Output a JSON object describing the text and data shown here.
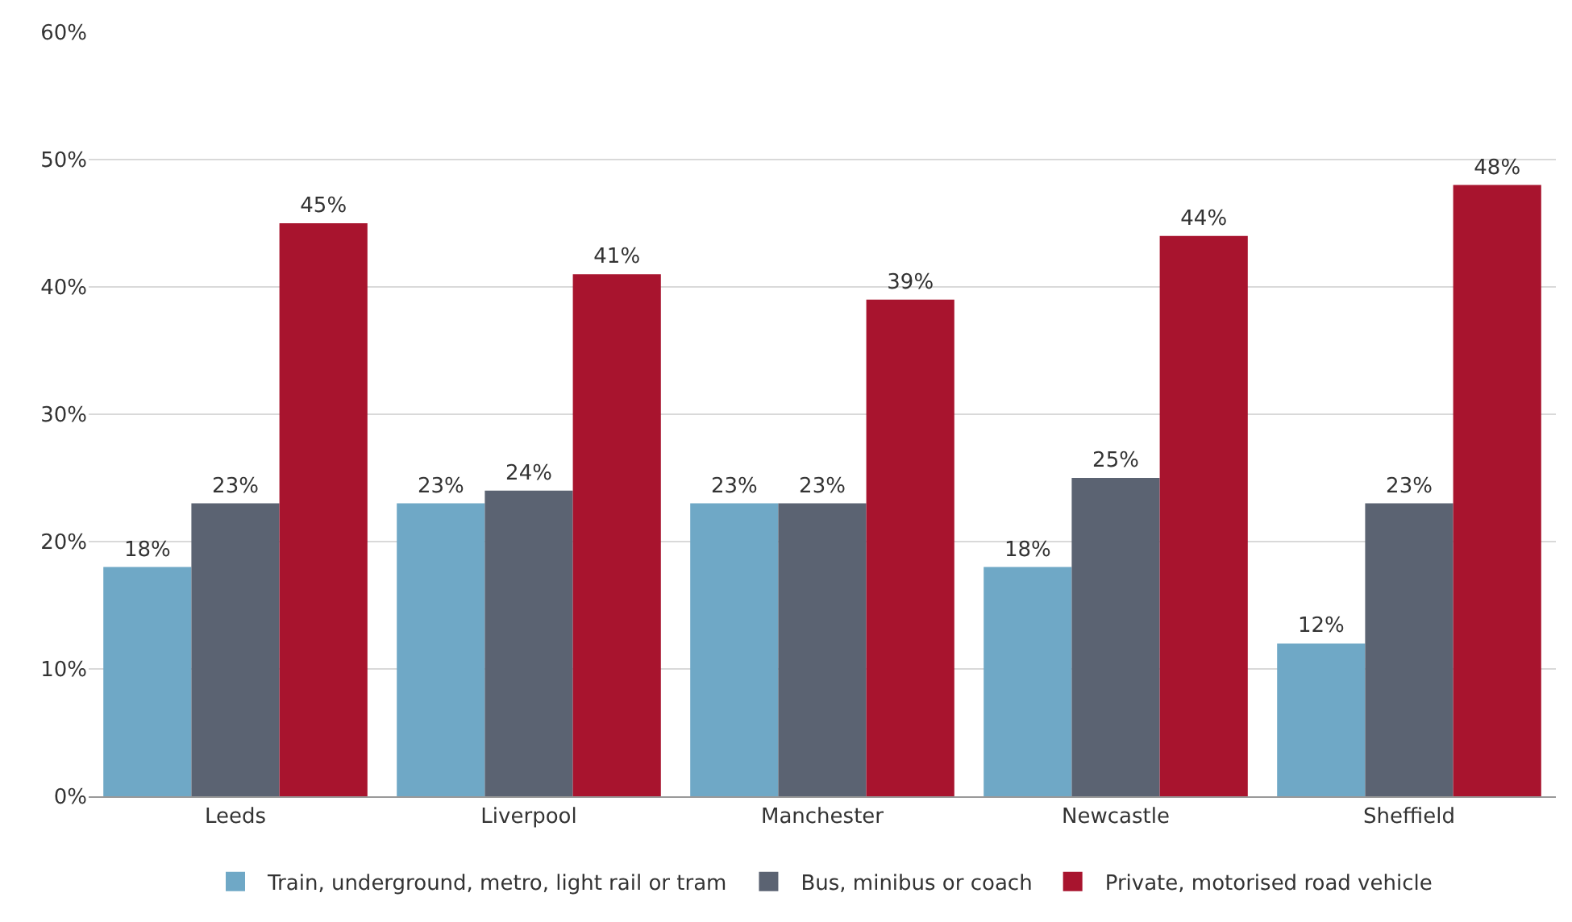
{
  "chart_data": {
    "type": "bar",
    "categories": [
      "Leeds",
      "Liverpool",
      "Manchester",
      "Newcastle",
      "Sheffield"
    ],
    "series": [
      {
        "name": "Train, underground, metro, light rail or tram",
        "color": "#6fa8c6",
        "values": [
          18,
          23,
          23,
          18,
          12
        ],
        "value_labels": [
          "18%",
          "23%",
          "23%",
          "18%",
          "12%"
        ]
      },
      {
        "name": "Bus, minibus or coach",
        "color": "#5b6372",
        "values": [
          23,
          24,
          23,
          25,
          23
        ],
        "value_labels": [
          "23%",
          "24%",
          "23%",
          "25%",
          "23%"
        ]
      },
      {
        "name": "Private, motorised road vehicle",
        "color": "#a8142e",
        "values": [
          45,
          41,
          39,
          44,
          48
        ],
        "value_labels": [
          "45%",
          "41%",
          "39%",
          "44%",
          "48%"
        ]
      }
    ],
    "ylim": [
      0,
      60
    ],
    "yticks": [
      {
        "value": 0,
        "label": "0%"
      },
      {
        "value": 10,
        "label": "10%"
      },
      {
        "value": 20,
        "label": "20%"
      },
      {
        "value": 30,
        "label": "30%"
      },
      {
        "value": 40,
        "label": "40%"
      },
      {
        "value": 50,
        "label": "50%"
      },
      {
        "value": 60,
        "label": "60%"
      }
    ],
    "grid": "y",
    "legend": "bottom"
  }
}
